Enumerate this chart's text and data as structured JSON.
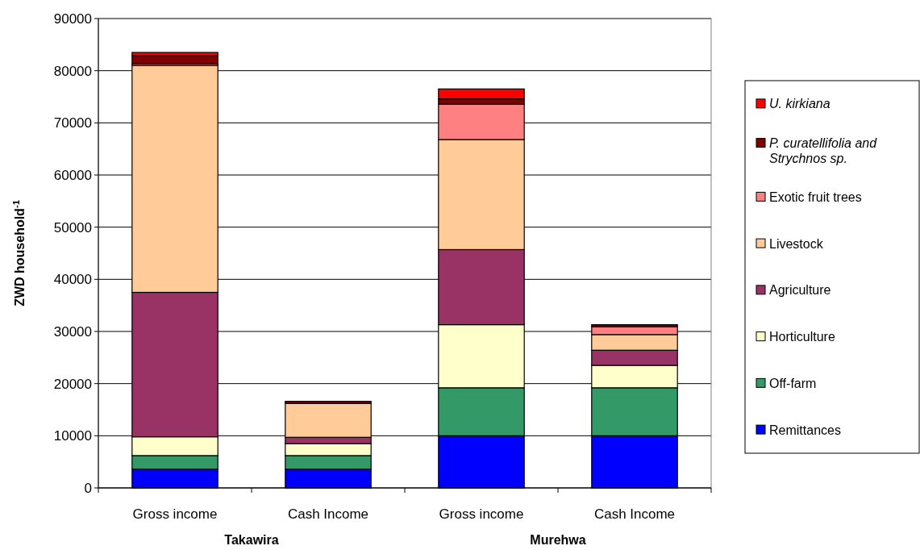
{
  "chart_data": {
    "type": "bar",
    "stacked": true,
    "ylabel": "ZWD household$^{-1}$",
    "categories": [
      "Gross income",
      "Cash Income",
      "Gross income",
      "Cash Income"
    ],
    "annotations": [
      "Takawira",
      "Murehwa"
    ],
    "series": [
      {
        "name": "Remittances",
        "color": "#0000ff",
        "values": [
          3600,
          3600,
          10000,
          10000
        ]
      },
      {
        "name": "Off-farm",
        "color": "#339966",
        "values": [
          2600,
          2600,
          9200,
          9200
        ]
      },
      {
        "name": "Horticulture",
        "color": "#ffffcc",
        "values": [
          3600,
          2300,
          12100,
          4300
        ]
      },
      {
        "name": "Agriculture",
        "color": "#993366",
        "values": [
          27700,
          1200,
          14400,
          2900
        ]
      },
      {
        "name": "Livestock",
        "color": "#ffcc99",
        "values": [
          43500,
          6500,
          21100,
          3000
        ]
      },
      {
        "name": "Exotic fruit trees",
        "color": "#ff8080",
        "values": [
          300,
          0,
          6800,
          1500
        ]
      },
      {
        "name": "P. curatellifolia and Strychnos sp.",
        "color": "#800000",
        "values": [
          1600,
          400,
          1000,
          400
        ]
      },
      {
        "name": "U. kirkiana",
        "color": "#ff0000",
        "values": [
          600,
          0,
          1900,
          0
        ]
      }
    ],
    "ylim": [
      0,
      90000
    ],
    "yticks": [
      0,
      10000,
      20000,
      30000,
      40000,
      50000,
      60000,
      70000,
      80000,
      90000
    ],
    "grid": "y",
    "legend": "right"
  }
}
